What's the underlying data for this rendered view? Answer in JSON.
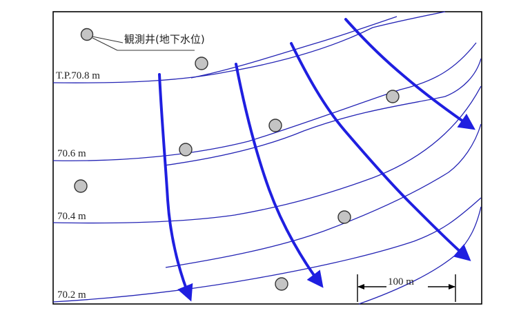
{
  "legend": {
    "label": "観測井(地下水位)",
    "icon": "well-circle"
  },
  "contours": [
    {
      "label": "T.P.70.8 m"
    },
    {
      "label": "70.6 m"
    },
    {
      "label": "70.4 m"
    },
    {
      "label": "70.2 m"
    }
  ],
  "scale_bar": {
    "label": "100 m"
  },
  "colors": {
    "contour": "#2323b4",
    "flow": "#1f1fe0",
    "well": "#c4c4c4"
  }
}
